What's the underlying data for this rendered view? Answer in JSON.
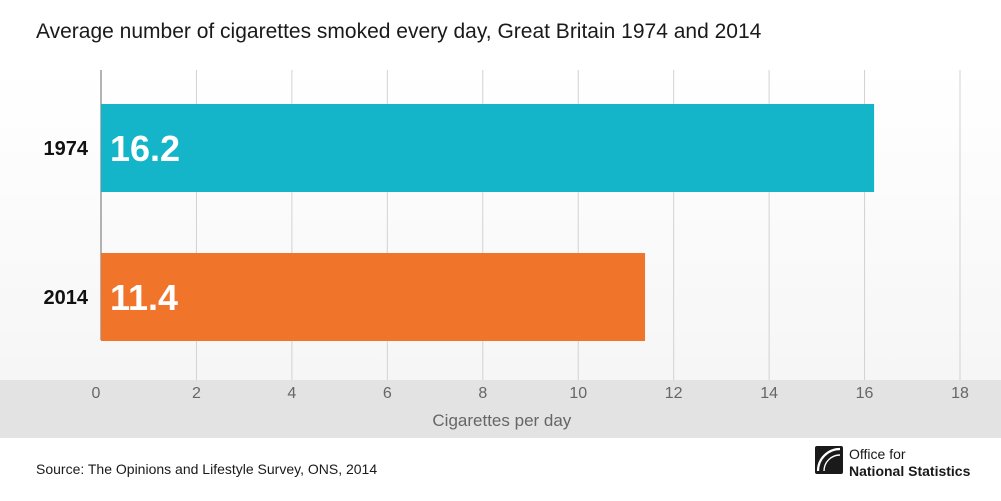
{
  "title": "Average number of cigarettes smoked every day, Great Britain 1974 and 2014",
  "source": "Source: The Opinions and Lifestyle Survey, ONS, 2014",
  "logo": {
    "line1": "Office for",
    "line2": "National Statistics"
  },
  "chart_data": {
    "type": "bar",
    "orientation": "horizontal",
    "categories": [
      "1974",
      "2014"
    ],
    "values": [
      16.2,
      11.4
    ],
    "value_labels": [
      "16.2",
      "11.4"
    ],
    "bar_colors": [
      "#14b5c9",
      "#f0742a"
    ],
    "title": "Average number of cigarettes smoked every day, Great Britain 1974 and 2014",
    "xlabel": "Cigarettes per day",
    "ylabel": "",
    "xlim": [
      0,
      18
    ],
    "xticks": [
      "0",
      "2",
      "4",
      "6",
      "8",
      "10",
      "12",
      "14",
      "16",
      "18"
    ],
    "grid": true
  }
}
